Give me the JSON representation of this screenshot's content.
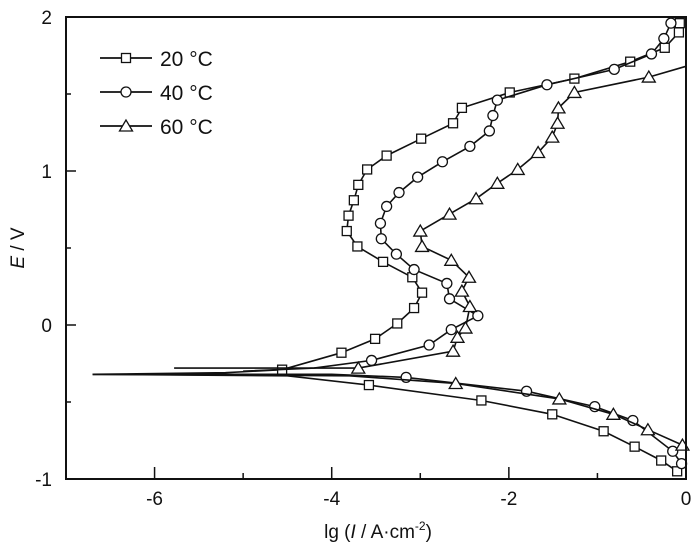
{
  "chart_data": {
    "type": "line",
    "title": "",
    "xlabel": {
      "prefix": "lg (",
      "var": "I",
      "unit": " / A·cm",
      "sup": "-2",
      "suffix": ")"
    },
    "ylabel": {
      "var": "E",
      "unit": " / V"
    },
    "xlim": [
      -7,
      0
    ],
    "ylim": [
      -1,
      2
    ],
    "xticks": [
      -6,
      -4,
      -2,
      0
    ],
    "xtick_labels": [
      "-6",
      "-4",
      "-2",
      "0"
    ],
    "xminor": [
      -7,
      -5,
      -3,
      -1
    ],
    "yticks": [
      -1,
      0,
      1,
      2
    ],
    "ytick_labels": [
      "-1",
      "0",
      "1",
      "2"
    ],
    "yminor": [
      -0.5,
      0.5,
      1.5
    ],
    "grid": false,
    "legend_position": "top-left",
    "series": [
      {
        "name": "20 °C",
        "label_num": "20",
        "label_unit": "°C",
        "marker": "square",
        "cathodic_lead": [
          [
            -6.7,
            -0.32
          ],
          [
            -4.5,
            -0.33
          ]
        ],
        "cathodic": [
          [
            -3.58,
            -0.39
          ],
          [
            -2.31,
            -0.49
          ],
          [
            -1.51,
            -0.58
          ],
          [
            -0.93,
            -0.69
          ],
          [
            -0.58,
            -0.79
          ],
          [
            -0.28,
            -0.88
          ],
          [
            -0.1,
            -0.95
          ]
        ],
        "anodic_lead": [
          [
            -6.7,
            -0.32
          ],
          [
            -5.2,
            -0.31
          ]
        ],
        "anodic": [
          [
            -4.56,
            -0.29
          ],
          [
            -3.89,
            -0.18
          ],
          [
            -3.51,
            -0.09
          ],
          [
            -3.26,
            0.01
          ],
          [
            -3.07,
            0.11
          ],
          [
            -2.98,
            0.21
          ],
          [
            -3.09,
            0.31
          ],
          [
            -3.42,
            0.41
          ],
          [
            -3.71,
            0.51
          ],
          [
            -3.83,
            0.61
          ],
          [
            -3.81,
            0.71
          ],
          [
            -3.75,
            0.81
          ],
          [
            -3.7,
            0.91
          ],
          [
            -3.6,
            1.01
          ],
          [
            -3.38,
            1.1
          ],
          [
            -2.99,
            1.21
          ],
          [
            -2.63,
            1.31
          ],
          [
            -2.53,
            1.41
          ],
          [
            -1.99,
            1.51
          ],
          [
            -1.26,
            1.6
          ],
          [
            -0.63,
            1.71
          ],
          [
            -0.24,
            1.8
          ],
          [
            -0.08,
            1.9
          ],
          [
            -0.07,
            1.96
          ]
        ]
      },
      {
        "name": "40 °C",
        "label_num": "40",
        "label_unit": "°C",
        "marker": "circle",
        "cathodic_lead": [
          [
            -6.7,
            -0.32
          ],
          [
            -4.0,
            -0.32
          ]
        ],
        "cathodic": [
          [
            -3.16,
            -0.34
          ],
          [
            -1.8,
            -0.43
          ],
          [
            -1.03,
            -0.53
          ],
          [
            -0.6,
            -0.62
          ],
          [
            -0.15,
            -0.82
          ],
          [
            -0.05,
            -0.9
          ]
        ],
        "anodic_lead": [
          [
            -5.0,
            -0.3
          ],
          [
            -4.2,
            -0.28
          ]
        ],
        "anodic": [
          [
            -3.55,
            -0.23
          ],
          [
            -2.9,
            -0.13
          ],
          [
            -2.65,
            -0.03
          ],
          [
            -2.35,
            0.06
          ],
          [
            -2.67,
            0.17
          ],
          [
            -2.7,
            0.27
          ],
          [
            -3.07,
            0.36
          ],
          [
            -3.27,
            0.46
          ],
          [
            -3.44,
            0.56
          ],
          [
            -3.45,
            0.66
          ],
          [
            -3.38,
            0.77
          ],
          [
            -3.24,
            0.86
          ],
          [
            -3.03,
            0.96
          ],
          [
            -2.75,
            1.06
          ],
          [
            -2.44,
            1.16
          ],
          [
            -2.22,
            1.26
          ],
          [
            -2.18,
            1.36
          ],
          [
            -2.13,
            1.46
          ],
          [
            -1.57,
            1.56
          ],
          [
            -0.81,
            1.66
          ],
          [
            -0.39,
            1.76
          ],
          [
            -0.25,
            1.86
          ],
          [
            -0.17,
            1.96
          ]
        ]
      },
      {
        "name": "60 °C",
        "label_num": "60",
        "label_unit": "°C",
        "marker": "triangle",
        "cathodic_lead": [
          [
            -6.7,
            -0.32
          ],
          [
            -3.8,
            -0.33
          ]
        ],
        "cathodic": [
          [
            -2.6,
            -0.38
          ],
          [
            -1.43,
            -0.48
          ],
          [
            -0.82,
            -0.58
          ],
          [
            -0.43,
            -0.68
          ],
          [
            -0.04,
            -0.78
          ]
        ],
        "anodic_lead": [
          [
            -5.78,
            -0.28
          ],
          [
            -4.6,
            -0.28
          ]
        ],
        "anodic": [
          [
            -3.7,
            -0.28
          ],
          [
            -2.63,
            -0.17
          ],
          [
            -2.58,
            -0.08
          ],
          [
            -2.49,
            -0.02
          ],
          [
            -2.44,
            0.12
          ],
          [
            -2.53,
            0.22
          ],
          [
            -2.45,
            0.31
          ],
          [
            -2.65,
            0.42
          ],
          [
            -2.98,
            0.51
          ],
          [
            -3.0,
            0.61
          ],
          [
            -2.67,
            0.72
          ],
          [
            -2.37,
            0.82
          ],
          [
            -2.13,
            0.92
          ],
          [
            -1.9,
            1.01
          ],
          [
            -1.67,
            1.12
          ],
          [
            -1.51,
            1.22
          ],
          [
            -1.45,
            1.31
          ],
          [
            -1.44,
            1.41
          ],
          [
            -1.26,
            1.51
          ],
          [
            -0.42,
            1.61
          ]
        ],
        "anodic_tail": [
          [
            -0.42,
            1.61
          ],
          [
            0,
            1.68
          ]
        ]
      }
    ]
  }
}
